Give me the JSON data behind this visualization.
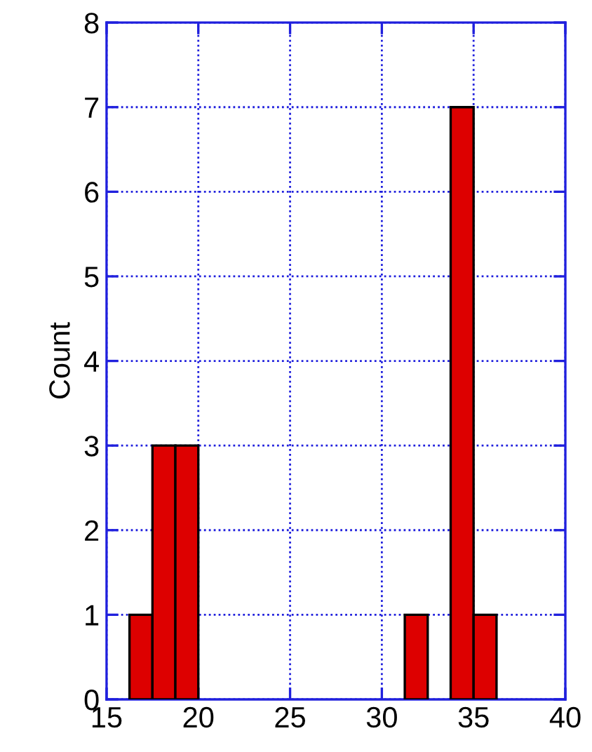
{
  "chart_data": {
    "type": "histogram",
    "ylabel": "Count",
    "bins": [
      16.25,
      17.5,
      18.75,
      20,
      21.25,
      22.5,
      23.75,
      25,
      26.25,
      27.5,
      28.75,
      30,
      31.25,
      32.5,
      33.75,
      35,
      36.25
    ],
    "values": [
      1,
      3,
      3,
      0,
      0,
      0,
      0,
      0,
      0,
      0,
      0,
      0,
      1,
      0,
      7,
      1
    ],
    "color": "#dd0000",
    "xlim": [
      15,
      40
    ],
    "xticks": [
      15,
      20,
      25,
      30,
      35,
      40
    ],
    "ylim": [
      0,
      8
    ],
    "yticks": [
      0,
      1,
      2,
      3,
      4,
      5,
      6,
      7,
      8
    ],
    "grid": true
  }
}
